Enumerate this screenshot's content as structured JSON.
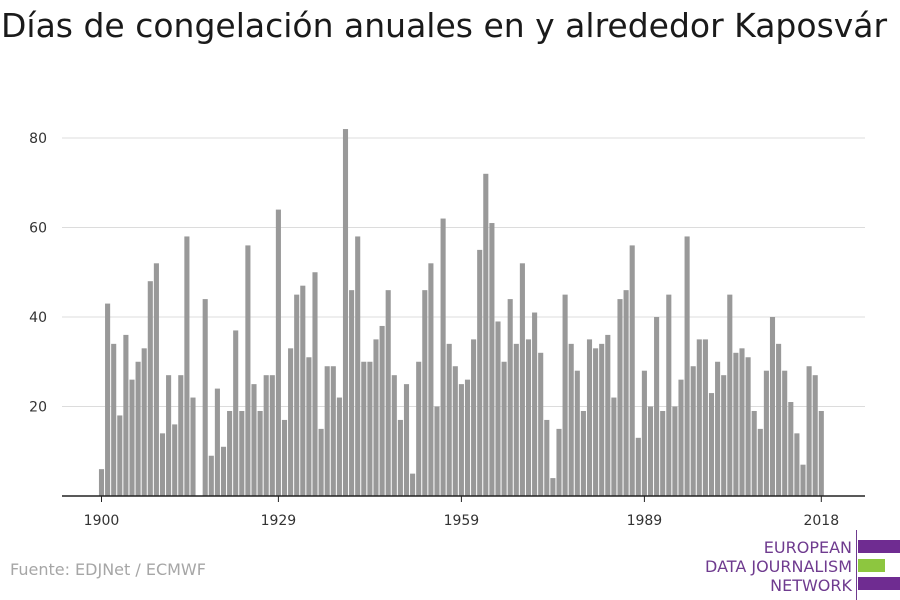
{
  "title": "Días de congelación anuales en y alrededor Kaposvár",
  "source": "Fuente: EDJNet / ECMWF",
  "logo": {
    "line1": "EUROPEAN",
    "line2": "DATA JOURNALISM",
    "line3": "NETWORK",
    "colors": {
      "purple": "#6f2c91",
      "green": "#8dc63f"
    }
  },
  "chart_data": {
    "type": "bar",
    "title": "Días de congelación anuales en y alrededor Kaposvár",
    "xlabel": "",
    "ylabel": "",
    "bar_color": "#999999",
    "grid": true,
    "xlim": [
      1900,
      2018
    ],
    "ylim": [
      0,
      80
    ],
    "x_ticks": [
      1900,
      1929,
      1959,
      1989,
      2018
    ],
    "y_ticks": [
      20,
      40,
      60,
      80
    ],
    "years": [
      1900,
      1901,
      1902,
      1903,
      1904,
      1905,
      1906,
      1907,
      1908,
      1909,
      1910,
      1911,
      1912,
      1913,
      1914,
      1915,
      1916,
      1917,
      1918,
      1919,
      1920,
      1921,
      1922,
      1923,
      1924,
      1925,
      1926,
      1927,
      1928,
      1929,
      1930,
      1931,
      1932,
      1933,
      1934,
      1935,
      1936,
      1937,
      1938,
      1939,
      1940,
      1941,
      1942,
      1943,
      1944,
      1945,
      1946,
      1947,
      1948,
      1949,
      1950,
      1951,
      1952,
      1953,
      1954,
      1955,
      1956,
      1957,
      1958,
      1959,
      1960,
      1961,
      1962,
      1963,
      1964,
      1965,
      1966,
      1967,
      1968,
      1969,
      1970,
      1971,
      1972,
      1973,
      1974,
      1975,
      1976,
      1977,
      1978,
      1979,
      1980,
      1981,
      1982,
      1983,
      1984,
      1985,
      1986,
      1987,
      1988,
      1989,
      1990,
      1991,
      1992,
      1993,
      1994,
      1995,
      1996,
      1997,
      1998,
      1999,
      2000,
      2001,
      2002,
      2003,
      2004,
      2005,
      2006,
      2007,
      2008,
      2009,
      2010,
      2011,
      2012,
      2013,
      2014,
      2015,
      2016,
      2017,
      2018
    ],
    "values": [
      6,
      43,
      34,
      18,
      36,
      26,
      30,
      33,
      48,
      52,
      14,
      27,
      16,
      27,
      58,
      22,
      0,
      44,
      9,
      24,
      11,
      19,
      37,
      19,
      56,
      25,
      19,
      27,
      27,
      64,
      17,
      33,
      45,
      47,
      31,
      50,
      15,
      29,
      29,
      22,
      82,
      46,
      58,
      30,
      30,
      35,
      38,
      46,
      27,
      17,
      25,
      5,
      30,
      46,
      52,
      20,
      62,
      34,
      29,
      25,
      26,
      35,
      55,
      72,
      61,
      39,
      30,
      44,
      34,
      52,
      35,
      41,
      32,
      17,
      4,
      15,
      45,
      34,
      28,
      19,
      35,
      33,
      34,
      36,
      22,
      44,
      46,
      56,
      13,
      28,
      20,
      40,
      19,
      45,
      20,
      26,
      58,
      29,
      35,
      35,
      23,
      30,
      27,
      45,
      32,
      33,
      31,
      19,
      15,
      28,
      40,
      34,
      28,
      21,
      14,
      7,
      29,
      27,
      19
    ]
  }
}
